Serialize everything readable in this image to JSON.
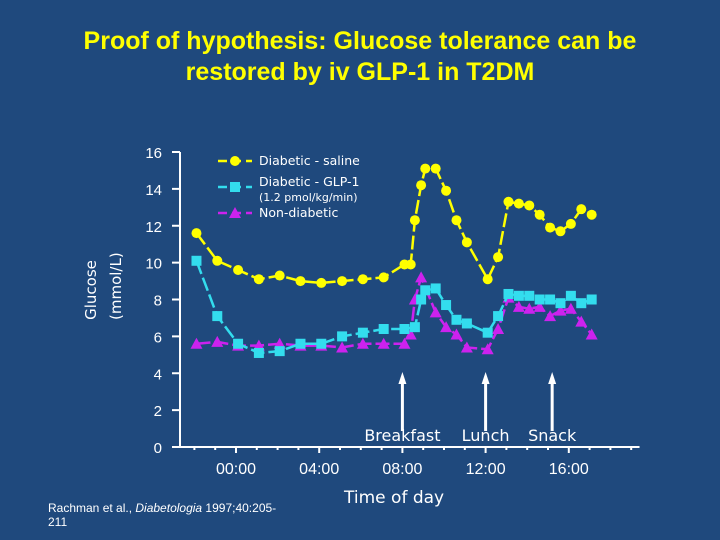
{
  "title": {
    "line1": "Proof of hypothesis: Glucose tolerance can be",
    "line2": "restored by iv GLP-1 in T2DM"
  },
  "citation": {
    "authors": "Rachman et al., ",
    "journal": "Diabetologia",
    "ref": " 1997;40:205-211"
  },
  "chart_data": {
    "type": "line",
    "xlabel": "Time of day",
    "ylabel": "Glucose (mmol/L)",
    "ylim": [
      0,
      16
    ],
    "yticks": [
      "0",
      "2",
      "4",
      "6",
      "8",
      "10",
      "12",
      "14",
      "16"
    ],
    "xlim_hours": [
      -2.6,
      19.4
    ],
    "xticks": [
      {
        "hour": 0,
        "label": "00:00"
      },
      {
        "hour": 4,
        "label": "04:00"
      },
      {
        "hour": 8,
        "label": "08:00"
      },
      {
        "hour": 12,
        "label": "12:00"
      },
      {
        "hour": 16,
        "label": "16:00"
      }
    ],
    "grid": false,
    "legend": "top-left",
    "annotations": [
      {
        "label": "Breakfast",
        "hour": 8
      },
      {
        "label": "Lunch",
        "hour": 12
      },
      {
        "label": "Snack",
        "hour": 15.2
      }
    ],
    "series": [
      {
        "name": "Diabetic - saline",
        "sub": "",
        "color": "#ffff00",
        "marker": "circle",
        "x": [
          -1.9,
          -0.9,
          0.1,
          1.1,
          2.1,
          3.1,
          4.1,
          5.1,
          6.1,
          7.1,
          8.1,
          8.4,
          8.6,
          8.9,
          9.1,
          9.6,
          10.1,
          10.6,
          11.1,
          12.1,
          12.6,
          13.1,
          13.6,
          14.1,
          14.6,
          15.1,
          15.6,
          16.1,
          16.6,
          17.1
        ],
        "y": [
          11.6,
          10.1,
          9.6,
          9.1,
          9.3,
          9.0,
          8.9,
          9.0,
          9.1,
          9.2,
          9.9,
          9.9,
          12.3,
          14.2,
          15.1,
          15.1,
          13.9,
          12.3,
          11.1,
          9.1,
          10.3,
          13.3,
          13.2,
          13.1,
          12.6,
          11.9,
          11.7,
          12.1,
          12.9,
          12.6
        ]
      },
      {
        "name": "Diabetic - GLP-1",
        "sub": "(1.2 pmol/kg/min)",
        "color": "#33ddee",
        "marker": "square",
        "x": [
          -1.9,
          -0.9,
          0.1,
          1.1,
          2.1,
          3.1,
          4.1,
          5.1,
          6.1,
          7.1,
          8.1,
          8.6,
          8.9,
          9.1,
          9.6,
          10.1,
          10.6,
          11.1,
          12.1,
          12.6,
          13.1,
          13.6,
          14.1,
          14.6,
          15.1,
          15.6,
          16.1,
          16.6,
          17.1
        ],
        "y": [
          10.1,
          7.1,
          5.6,
          5.1,
          5.2,
          5.6,
          5.6,
          6.0,
          6.2,
          6.4,
          6.4,
          6.5,
          8.0,
          8.5,
          8.6,
          7.7,
          6.9,
          6.7,
          6.2,
          7.1,
          8.3,
          8.2,
          8.2,
          8.0,
          8.0,
          7.8,
          8.2,
          7.8,
          8.0
        ]
      },
      {
        "name": "Non-diabetic",
        "sub": "",
        "color": "#cc22ee",
        "marker": "triangle",
        "x": [
          -1.9,
          -0.9,
          0.1,
          1.1,
          2.1,
          3.1,
          4.1,
          5.1,
          6.1,
          7.1,
          8.1,
          8.4,
          8.6,
          8.9,
          9.6,
          10.1,
          10.6,
          11.1,
          12.1,
          12.6,
          13.1,
          13.6,
          14.1,
          14.6,
          15.1,
          15.6,
          16.1,
          16.6,
          17.1
        ],
        "y": [
          5.6,
          5.7,
          5.5,
          5.5,
          5.6,
          5.5,
          5.5,
          5.4,
          5.6,
          5.6,
          5.6,
          6.1,
          8.0,
          9.2,
          7.3,
          6.5,
          6.1,
          5.4,
          5.3,
          6.4,
          8.1,
          7.6,
          7.5,
          7.6,
          7.1,
          7.4,
          7.5,
          6.8,
          6.1
        ]
      }
    ]
  }
}
